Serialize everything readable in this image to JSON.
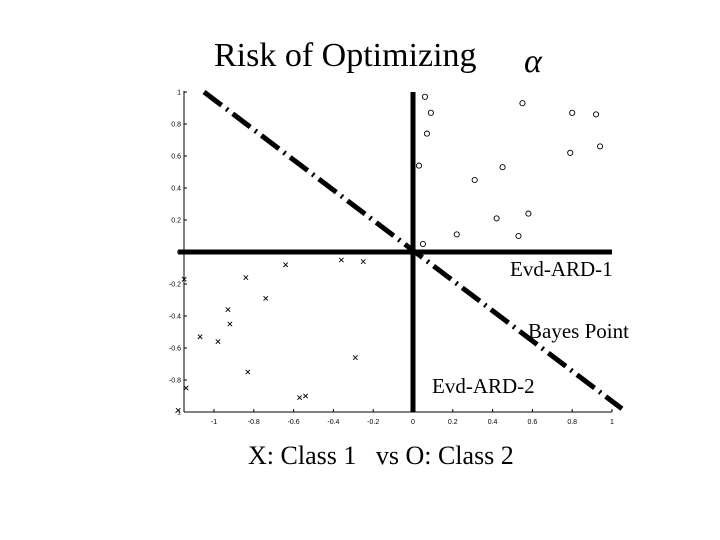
{
  "chart_data": {
    "type": "scatter",
    "title": "Risk of Optimizing",
    "title_symbol": "α",
    "caption": "X: Class 1   vs O: Class 2",
    "xlim": [
      -1.2,
      1.0
    ],
    "ylim": [
      -1.0,
      1.0
    ],
    "grid": false,
    "x_ticks": [
      "-1",
      "-0.8",
      "-0.6",
      "-0.4",
      "-0.2",
      "0",
      "0.2",
      "0.4",
      "0.6",
      "0.8",
      "1"
    ],
    "x_tick_values": [
      -1,
      -0.8,
      -0.6,
      -0.4,
      -0.2,
      0,
      0.2,
      0.4,
      0.6,
      0.8,
      1
    ],
    "y_ticks": [
      "1",
      "0.8",
      "0.6",
      "0.4",
      "0.2",
      "0",
      "-0.2",
      "-0.4",
      "-0.6",
      "-0.8",
      "-1"
    ],
    "y_tick_values": [
      1,
      0.8,
      0.6,
      0.4,
      0.2,
      0,
      -0.2,
      -0.4,
      -0.6,
      -0.8,
      -1
    ],
    "series": [
      {
        "marker": "x",
        "points": [
          [
            -1.15,
            -0.17
          ],
          [
            -0.84,
            -0.16
          ],
          [
            -0.64,
            -0.08
          ],
          [
            -0.36,
            -0.05
          ],
          [
            -0.25,
            -0.06
          ],
          [
            -0.74,
            -0.29
          ],
          [
            -0.93,
            -0.36
          ],
          [
            -0.92,
            -0.45
          ],
          [
            -1.07,
            -0.53
          ],
          [
            -0.98,
            -0.56
          ],
          [
            -0.29,
            -0.66
          ],
          [
            -0.83,
            -0.75
          ],
          [
            -1.14,
            -0.85
          ],
          [
            -0.54,
            -0.9
          ],
          [
            -0.57,
            -0.91
          ],
          [
            -1.18,
            -0.99
          ]
        ]
      },
      {
        "marker": "o",
        "points": [
          [
            0.06,
            0.97
          ],
          [
            0.09,
            0.87
          ],
          [
            0.55,
            0.93
          ],
          [
            0.92,
            0.86
          ],
          [
            0.8,
            0.87
          ],
          [
            0.07,
            0.74
          ],
          [
            0.79,
            0.62
          ],
          [
            0.94,
            0.66
          ],
          [
            0.03,
            0.54
          ],
          [
            0.45,
            0.53
          ],
          [
            0.31,
            0.45
          ],
          [
            0.42,
            0.21
          ],
          [
            0.58,
            0.24
          ],
          [
            0.22,
            0.11
          ],
          [
            0.53,
            0.1
          ],
          [
            0.05,
            0.05
          ]
        ]
      }
    ],
    "overlay_lines": [
      {
        "label": "Evd-ARD-1",
        "style": "solid",
        "points": [
          [
            -1.18,
            0.0
          ],
          [
            1.0,
            0.0
          ]
        ]
      },
      {
        "label": "Evd-ARD-2",
        "style": "solid",
        "points": [
          [
            0.0,
            1.0
          ],
          [
            0.0,
            -1.0
          ]
        ]
      },
      {
        "label": "Bayes Point",
        "style": "dash-dot",
        "points": [
          [
            -1.05,
            1.0
          ],
          [
            1.05,
            -0.98
          ]
        ]
      }
    ],
    "annotations": {
      "evd1": "Evd-ARD-1",
      "bayes": "Bayes Point",
      "evd2": "Evd-ARD-2"
    }
  }
}
